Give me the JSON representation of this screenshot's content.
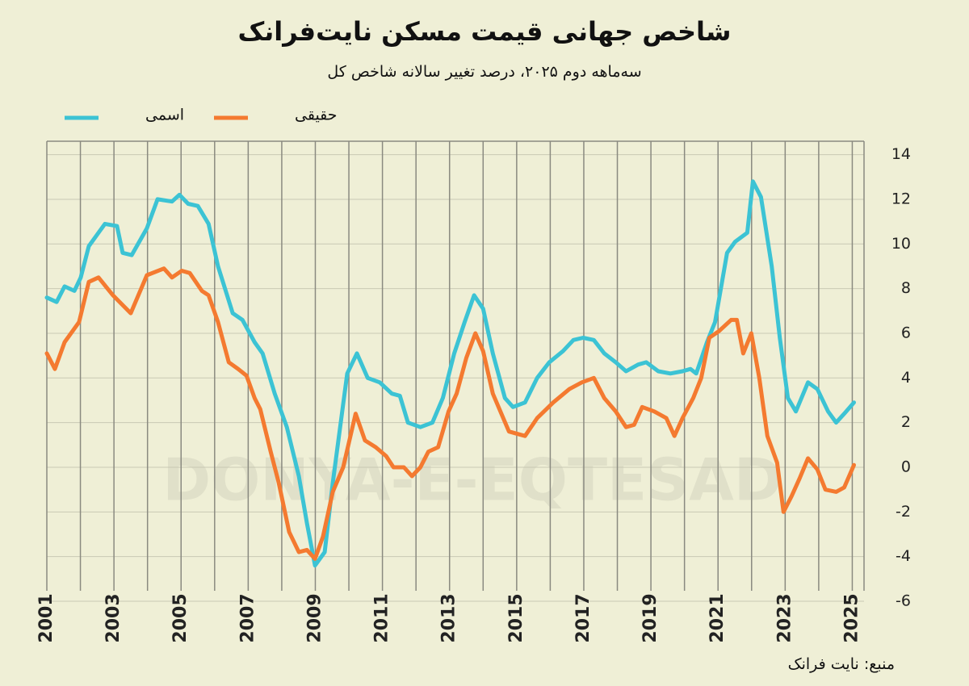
{
  "chart_data": {
    "type": "line",
    "title": "شاخص جهانی قیمت مسکن نایت‌فرانک",
    "subtitle": "سه‌ماهه دوم ۲۰۲۵، درصد تغییر سالانه شاخص کل",
    "source": "منبع: نایت فرانک",
    "watermark": "DONYA-E-EQTESAD",
    "xlim": [
      2001,
      2025.35
    ],
    "xticks": [
      2001,
      2003,
      2005,
      2007,
      2009,
      2011,
      2013,
      2015,
      2017,
      2019,
      2021,
      2023,
      2025
    ],
    "xgrid_lines": [
      2001,
      2002,
      2003,
      2004,
      2005,
      2006,
      2007,
      2008,
      2009,
      2010,
      2011,
      2012,
      2013,
      2014,
      2015,
      2016,
      2017,
      2018,
      2019,
      2020,
      2021,
      2022,
      2023,
      2024,
      2025
    ],
    "ylim": [
      -6,
      14.6
    ],
    "yticks": [
      -6,
      -4,
      -2,
      0,
      2,
      4,
      6,
      8,
      10,
      12,
      14
    ],
    "grid": true,
    "series": [
      {
        "name": "اسمی",
        "color": "#3cc3d4",
        "x": [
          2001.0,
          2001.29,
          2001.53,
          2001.82,
          2002.01,
          2002.25,
          2002.73,
          2003.09,
          2003.26,
          2003.53,
          2003.98,
          2004.3,
          2004.73,
          2004.95,
          2005.21,
          2005.5,
          2005.82,
          2006.1,
          2006.54,
          2006.83,
          2007.19,
          2007.43,
          2007.79,
          2008.15,
          2008.51,
          2008.75,
          2008.99,
          2009.28,
          2009.52,
          2009.95,
          2010.24,
          2010.56,
          2010.92,
          2011.28,
          2011.52,
          2011.76,
          2012.13,
          2012.49,
          2012.8,
          2013.14,
          2013.45,
          2013.73,
          2014.0,
          2014.29,
          2014.65,
          2014.89,
          2015.25,
          2015.61,
          2015.97,
          2016.38,
          2016.69,
          2016.98,
          2017.3,
          2017.61,
          2017.95,
          2018.26,
          2018.62,
          2018.86,
          2019.22,
          2019.58,
          2019.94,
          2020.18,
          2020.35,
          2020.67,
          2020.91,
          2021.27,
          2021.51,
          2021.87,
          2022.04,
          2022.28,
          2022.6,
          2022.84,
          2023.08,
          2023.32,
          2023.68,
          2023.96,
          2024.28,
          2024.52,
          2024.76,
          2025.05
        ],
        "values": [
          7.6,
          7.4,
          8.1,
          7.9,
          8.5,
          9.9,
          10.9,
          10.8,
          9.6,
          9.5,
          10.7,
          12.0,
          11.9,
          12.2,
          11.8,
          11.7,
          10.9,
          9.0,
          6.9,
          6.6,
          5.6,
          5.1,
          3.3,
          1.8,
          -0.4,
          -2.5,
          -4.4,
          -3.8,
          -0.7,
          4.2,
          5.1,
          4.0,
          3.8,
          3.3,
          3.2,
          2.0,
          1.8,
          2.0,
          3.1,
          5.1,
          6.5,
          7.7,
          7.1,
          5.1,
          3.1,
          2.7,
          2.9,
          4.0,
          4.7,
          5.2,
          5.7,
          5.8,
          5.7,
          5.1,
          4.7,
          4.3,
          4.6,
          4.7,
          4.3,
          4.2,
          4.3,
          4.4,
          4.2,
          5.6,
          6.5,
          9.6,
          10.1,
          10.5,
          12.8,
          12.1,
          9.0,
          5.8,
          3.1,
          2.5,
          3.8,
          3.5,
          2.5,
          2.0,
          2.4,
          2.9
        ]
      },
      {
        "name": "حقیقی",
        "color": "#f47a30",
        "x": [
          2001.0,
          2001.24,
          2001.53,
          2001.96,
          2002.25,
          2002.54,
          2002.97,
          2003.5,
          2003.98,
          2004.49,
          2004.73,
          2005.02,
          2005.26,
          2005.62,
          2005.82,
          2006.1,
          2006.42,
          2006.7,
          2006.95,
          2007.19,
          2007.36,
          2007.67,
          2007.91,
          2008.22,
          2008.51,
          2008.75,
          2008.99,
          2009.23,
          2009.52,
          2009.83,
          2010.2,
          2010.48,
          2010.8,
          2011.11,
          2011.33,
          2011.64,
          2011.88,
          2012.13,
          2012.37,
          2012.66,
          2012.97,
          2013.21,
          2013.5,
          2013.77,
          2014.0,
          2014.29,
          2014.77,
          2015.25,
          2015.61,
          2016.09,
          2016.57,
          2016.94,
          2017.3,
          2017.61,
          2017.95,
          2018.26,
          2018.5,
          2018.74,
          2019.1,
          2019.46,
          2019.7,
          2019.94,
          2020.26,
          2020.5,
          2020.74,
          2021.03,
          2021.39,
          2021.56,
          2021.75,
          2021.99,
          2022.23,
          2022.47,
          2022.76,
          2022.95,
          2023.19,
          2023.43,
          2023.68,
          2023.96,
          2024.2,
          2024.52,
          2024.76,
          2025.05
        ],
        "values": [
          5.1,
          4.4,
          5.6,
          6.5,
          8.3,
          8.5,
          7.7,
          6.9,
          8.6,
          8.9,
          8.5,
          8.8,
          8.7,
          7.9,
          7.7,
          6.5,
          4.7,
          4.4,
          4.1,
          3.1,
          2.6,
          0.7,
          -0.7,
          -2.9,
          -3.8,
          -3.7,
          -4.1,
          -3.1,
          -1.1,
          0.0,
          2.4,
          1.2,
          0.9,
          0.5,
          0.0,
          0.0,
          -0.4,
          0.0,
          0.7,
          0.9,
          2.5,
          3.3,
          4.9,
          6.0,
          5.2,
          3.3,
          1.6,
          1.4,
          2.2,
          2.9,
          3.5,
          3.8,
          4.0,
          3.1,
          2.5,
          1.8,
          1.9,
          2.7,
          2.5,
          2.2,
          1.4,
          2.2,
          3.1,
          4.0,
          5.8,
          6.1,
          6.6,
          6.6,
          5.1,
          6.0,
          4.0,
          1.4,
          0.2,
          -2.0,
          -1.3,
          -0.5,
          0.4,
          -0.1,
          -1.0,
          -1.1,
          -0.9,
          0.1
        ]
      }
    ]
  }
}
